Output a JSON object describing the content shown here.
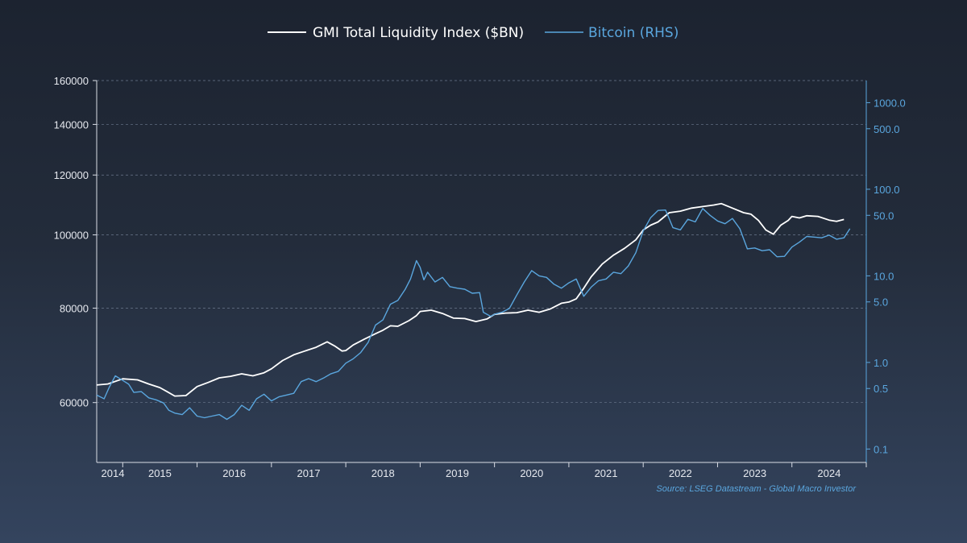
{
  "chart_data": {
    "type": "line",
    "legend": {
      "placement": "top-center",
      "items": [
        {
          "label": "GMI Total Liquidity Index ($BN)",
          "color": "#ffffff"
        },
        {
          "label": "Bitcoin (RHS)",
          "color": "#5aa6de"
        }
      ]
    },
    "source": "Source: LSEG Datastream - Global Macro Investor",
    "grid": {
      "horizontal": true,
      "style": "dashed"
    },
    "x_axis": {
      "range": [
        2013.65,
        2024.0
      ],
      "ticks": [
        2014,
        2015,
        2016,
        2017,
        2018,
        2019,
        2020,
        2021,
        2022,
        2023,
        2024
      ],
      "tick_labels": [
        "2014",
        "2015",
        "2016",
        "2017",
        "2018",
        "2019",
        "2020",
        "2021",
        "2022",
        "2023",
        "2024"
      ]
    },
    "y_left": {
      "scale": "log",
      "range": [
        50000,
        160000
      ],
      "ticks": [
        60000,
        80000,
        100000,
        120000,
        140000,
        160000
      ],
      "tick_labels": [
        "60000",
        "80000",
        "100000",
        "120000",
        "140000",
        "160000"
      ]
    },
    "y_right": {
      "scale": "log",
      "range": [
        0.07,
        1800
      ],
      "ticks": [
        0.1,
        0.5,
        1.0,
        5.0,
        10.0,
        50.0,
        100.0,
        500.0,
        1000.0
      ],
      "tick_labels": [
        "0.1",
        "0.5",
        "1.0",
        "5.0",
        "10.0",
        "50.0",
        "100.0",
        "500.0",
        "1000.0"
      ]
    },
    "series": [
      {
        "name": "GMI Total Liquidity Index ($BN)",
        "axis": "left",
        "color": "#ffffff",
        "points": [
          [
            2013.65,
            63300
          ],
          [
            2013.8,
            63500
          ],
          [
            2014.0,
            64500
          ],
          [
            2014.2,
            64300
          ],
          [
            2014.35,
            63500
          ],
          [
            2014.5,
            62800
          ],
          [
            2014.6,
            62000
          ],
          [
            2014.7,
            61200
          ],
          [
            2014.85,
            61300
          ],
          [
            2015.0,
            63000
          ],
          [
            2015.15,
            63800
          ],
          [
            2015.3,
            64700
          ],
          [
            2015.45,
            65000
          ],
          [
            2015.6,
            65500
          ],
          [
            2015.75,
            65100
          ],
          [
            2015.9,
            65700
          ],
          [
            2016.0,
            66500
          ],
          [
            2016.15,
            68200
          ],
          [
            2016.3,
            69400
          ],
          [
            2016.45,
            70200
          ],
          [
            2016.6,
            71000
          ],
          [
            2016.75,
            72200
          ],
          [
            2016.85,
            71300
          ],
          [
            2016.95,
            70200
          ],
          [
            2017.0,
            70300
          ],
          [
            2017.1,
            71500
          ],
          [
            2017.25,
            72800
          ],
          [
            2017.4,
            74000
          ],
          [
            2017.5,
            74800
          ],
          [
            2017.6,
            75800
          ],
          [
            2017.7,
            75700
          ],
          [
            2017.85,
            77000
          ],
          [
            2017.95,
            78200
          ],
          [
            2018.0,
            79200
          ],
          [
            2018.15,
            79500
          ],
          [
            2018.3,
            78700
          ],
          [
            2018.45,
            77600
          ],
          [
            2018.6,
            77500
          ],
          [
            2018.75,
            76800
          ],
          [
            2018.9,
            77400
          ],
          [
            2019.0,
            78500
          ],
          [
            2019.15,
            78800
          ],
          [
            2019.3,
            78900
          ],
          [
            2019.45,
            79500
          ],
          [
            2019.6,
            79000
          ],
          [
            2019.75,
            79800
          ],
          [
            2019.9,
            81200
          ],
          [
            2020.0,
            81500
          ],
          [
            2020.1,
            82300
          ],
          [
            2020.2,
            85000
          ],
          [
            2020.3,
            88000
          ],
          [
            2020.45,
            91500
          ],
          [
            2020.6,
            94000
          ],
          [
            2020.75,
            96000
          ],
          [
            2020.9,
            98500
          ],
          [
            2021.0,
            101500
          ],
          [
            2021.1,
            103000
          ],
          [
            2021.2,
            104000
          ],
          [
            2021.35,
            107000
          ],
          [
            2021.5,
            107500
          ],
          [
            2021.65,
            108500
          ],
          [
            2021.8,
            109000
          ],
          [
            2021.95,
            109500
          ],
          [
            2022.05,
            110000
          ],
          [
            2022.2,
            108500
          ],
          [
            2022.35,
            107000
          ],
          [
            2022.45,
            106500
          ],
          [
            2022.55,
            104500
          ],
          [
            2022.65,
            101500
          ],
          [
            2022.75,
            100200
          ],
          [
            2022.85,
            103000
          ],
          [
            2022.95,
            104500
          ],
          [
            2023.0,
            105800
          ],
          [
            2023.1,
            105300
          ],
          [
            2023.2,
            106000
          ],
          [
            2023.35,
            105800
          ],
          [
            2023.5,
            104600
          ],
          [
            2023.6,
            104200
          ],
          [
            2023.7,
            104800
          ]
        ]
      },
      {
        "name": "Bitcoin (RHS)",
        "axis": "right",
        "color": "#5aa6de",
        "points": [
          [
            2013.65,
            0.42
          ],
          [
            2013.75,
            0.38
          ],
          [
            2013.82,
            0.52
          ],
          [
            2013.9,
            0.7
          ],
          [
            2014.0,
            0.62
          ],
          [
            2014.08,
            0.56
          ],
          [
            2014.15,
            0.45
          ],
          [
            2014.25,
            0.46
          ],
          [
            2014.35,
            0.39
          ],
          [
            2014.45,
            0.37
          ],
          [
            2014.55,
            0.34
          ],
          [
            2014.62,
            0.28
          ],
          [
            2014.7,
            0.26
          ],
          [
            2014.8,
            0.25
          ],
          [
            2014.9,
            0.3
          ],
          [
            2015.0,
            0.24
          ],
          [
            2015.1,
            0.23
          ],
          [
            2015.2,
            0.24
          ],
          [
            2015.3,
            0.25
          ],
          [
            2015.4,
            0.22
          ],
          [
            2015.5,
            0.25
          ],
          [
            2015.6,
            0.32
          ],
          [
            2015.7,
            0.28
          ],
          [
            2015.8,
            0.38
          ],
          [
            2015.9,
            0.43
          ],
          [
            2016.0,
            0.36
          ],
          [
            2016.1,
            0.4
          ],
          [
            2016.2,
            0.42
          ],
          [
            2016.3,
            0.44
          ],
          [
            2016.4,
            0.6
          ],
          [
            2016.5,
            0.65
          ],
          [
            2016.6,
            0.6
          ],
          [
            2016.7,
            0.66
          ],
          [
            2016.8,
            0.74
          ],
          [
            2016.9,
            0.79
          ],
          [
            2017.0,
            0.98
          ],
          [
            2017.1,
            1.1
          ],
          [
            2017.2,
            1.3
          ],
          [
            2017.3,
            1.7
          ],
          [
            2017.4,
            2.7
          ],
          [
            2017.5,
            3.1
          ],
          [
            2017.6,
            4.7
          ],
          [
            2017.7,
            5.2
          ],
          [
            2017.8,
            7.0
          ],
          [
            2017.87,
            9.2
          ],
          [
            2017.95,
            15.0
          ],
          [
            2018.0,
            12.5
          ],
          [
            2018.05,
            9.0
          ],
          [
            2018.1,
            11.0
          ],
          [
            2018.2,
            8.5
          ],
          [
            2018.3,
            9.6
          ],
          [
            2018.4,
            7.5
          ],
          [
            2018.5,
            7.2
          ],
          [
            2018.6,
            7.0
          ],
          [
            2018.7,
            6.3
          ],
          [
            2018.8,
            6.4
          ],
          [
            2018.85,
            3.8
          ],
          [
            2018.95,
            3.4
          ],
          [
            2019.0,
            3.6
          ],
          [
            2019.1,
            3.8
          ],
          [
            2019.2,
            4.2
          ],
          [
            2019.3,
            6.0
          ],
          [
            2019.4,
            8.5
          ],
          [
            2019.5,
            11.5
          ],
          [
            2019.6,
            10.0
          ],
          [
            2019.7,
            9.6
          ],
          [
            2019.8,
            8.0
          ],
          [
            2019.9,
            7.2
          ],
          [
            2020.0,
            8.3
          ],
          [
            2020.1,
            9.2
          ],
          [
            2020.2,
            5.8
          ],
          [
            2020.3,
            7.4
          ],
          [
            2020.4,
            8.8
          ],
          [
            2020.5,
            9.2
          ],
          [
            2020.6,
            11.0
          ],
          [
            2020.7,
            10.6
          ],
          [
            2020.8,
            13.0
          ],
          [
            2020.9,
            18.5
          ],
          [
            2021.0,
            33.0
          ],
          [
            2021.1,
            47.0
          ],
          [
            2021.2,
            57.0
          ],
          [
            2021.3,
            57.5
          ],
          [
            2021.4,
            36.0
          ],
          [
            2021.5,
            34.0
          ],
          [
            2021.6,
            45.0
          ],
          [
            2021.7,
            42.0
          ],
          [
            2021.8,
            60.0
          ],
          [
            2021.9,
            50.0
          ],
          [
            2022.0,
            43.0
          ],
          [
            2022.1,
            40.0
          ],
          [
            2022.2,
            46.0
          ],
          [
            2022.3,
            35.0
          ],
          [
            2022.4,
            20.5
          ],
          [
            2022.5,
            21.0
          ],
          [
            2022.6,
            19.5
          ],
          [
            2022.7,
            20.0
          ],
          [
            2022.8,
            16.6
          ],
          [
            2022.9,
            16.8
          ],
          [
            2023.0,
            21.5
          ],
          [
            2023.1,
            24.5
          ],
          [
            2023.2,
            28.5
          ],
          [
            2023.3,
            28.0
          ],
          [
            2023.4,
            27.5
          ],
          [
            2023.5,
            29.5
          ],
          [
            2023.6,
            26.5
          ],
          [
            2023.7,
            27.5
          ],
          [
            2023.78,
            35.0
          ]
        ]
      }
    ]
  }
}
